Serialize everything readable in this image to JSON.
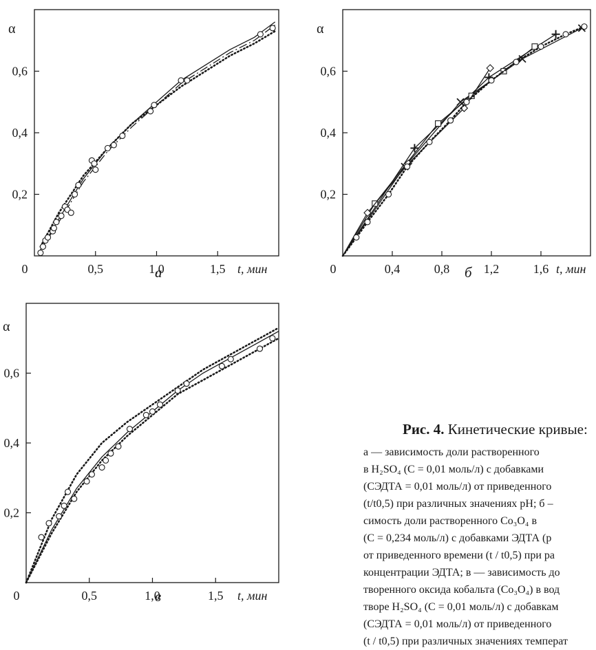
{
  "figure": {
    "caption_title_bold": "Рис. 4.",
    "caption_title_rest": " Кинетические кривые:",
    "caption_lines": [
      "а — зависимость доли растворенного",
      "в H₂SO₄ (C = 0,01 моль/л) с добавками",
      "(CЭДТА = 0,01 моль/л) от приведенного",
      "(t/t0,5) при различных значениях pH; б –",
      "симость доли растворенного Co₃O₄ в",
      "(C = 0,234 моль/л) с добавками ЭДТА (р",
      "от приведенного времени (t / t0,5) при ра",
      "концентрации ЭДТА; в — зависимость до",
      "творенного оксида кобальта (Co₃O₄) в вод",
      "творе H₂SO₄ (C = 0,01 моль/л) с добавкам",
      "(CЭДТА = 0,01 моль/л) от приведенного",
      "(t / t0,5) при различных значениях температ"
    ]
  },
  "chart_data": [
    {
      "type": "line",
      "panel_label": "а",
      "ylabel": "α",
      "xlabel": "t, мин",
      "xlim": [
        0,
        2.0
      ],
      "ylim": [
        0,
        0.8
      ],
      "x_ticks": [
        0.5,
        1.0,
        1.5
      ],
      "x_tick_labels": [
        "0,5",
        "1,0",
        "1,5"
      ],
      "y_ticks": [
        0.2,
        0.4,
        0.6
      ],
      "y_tick_labels": [
        "0,2",
        "0,4",
        "0,6"
      ],
      "origin_label": "0",
      "series": [
        {
          "style": "solid",
          "x": [
            0.05,
            0.2,
            0.4,
            0.6,
            0.8,
            1.0,
            1.2,
            1.4,
            1.6,
            1.8,
            1.97
          ],
          "y": [
            0.02,
            0.12,
            0.25,
            0.35,
            0.43,
            0.5,
            0.57,
            0.62,
            0.67,
            0.71,
            0.76
          ]
        },
        {
          "style": "dashdot",
          "x": [
            0.05,
            0.2,
            0.4,
            0.6,
            0.8,
            1.0,
            1.2,
            1.4,
            1.6,
            1.8,
            1.97
          ],
          "y": [
            0.02,
            0.11,
            0.24,
            0.34,
            0.42,
            0.49,
            0.56,
            0.61,
            0.66,
            0.7,
            0.75
          ]
        },
        {
          "style": "dotted",
          "x": [
            0.05,
            0.2,
            0.4,
            0.6,
            0.8,
            1.0,
            1.2,
            1.4,
            1.6,
            1.8,
            1.97
          ],
          "y": [
            0.03,
            0.14,
            0.26,
            0.35,
            0.43,
            0.49,
            0.55,
            0.6,
            0.65,
            0.69,
            0.73
          ]
        },
        {
          "style": "markers-o",
          "x": [
            0.05,
            0.07,
            0.09,
            0.11,
            0.15,
            0.16,
            0.18,
            0.22,
            0.25,
            0.27,
            0.3,
            0.33,
            0.36,
            0.47,
            0.49,
            0.5,
            0.6,
            0.65,
            0.72,
            0.95,
            0.98,
            1.2,
            1.25,
            1.85,
            1.95
          ],
          "y": [
            0.01,
            0.03,
            0.05,
            0.06,
            0.08,
            0.09,
            0.11,
            0.13,
            0.16,
            0.15,
            0.14,
            0.2,
            0.23,
            0.31,
            0.3,
            0.28,
            0.35,
            0.36,
            0.39,
            0.47,
            0.49,
            0.57,
            0.57,
            0.72,
            0.74
          ]
        }
      ]
    },
    {
      "type": "line",
      "panel_label": "б",
      "ylabel": "α",
      "xlabel": "t, мин",
      "xlim": [
        0,
        2.0
      ],
      "ylim": [
        0,
        0.8
      ],
      "x_ticks": [
        0.4,
        0.8,
        1.2,
        1.6
      ],
      "x_tick_labels": [
        "0,4",
        "0,8",
        "1,2",
        "1,6"
      ],
      "y_ticks": [
        0.2,
        0.4,
        0.6
      ],
      "y_tick_labels": [
        "0,2",
        "0,4",
        "0,6"
      ],
      "origin_label": "0",
      "series": [
        {
          "style": "solid",
          "marker": "x",
          "x": [
            0,
            0.5,
            0.95,
            1.45,
            1.93
          ],
          "y": [
            0,
            0.29,
            0.5,
            0.64,
            0.74
          ]
        },
        {
          "style": "solid",
          "marker": "+",
          "x": [
            0,
            0.58,
            1.18,
            1.72
          ],
          "y": [
            0,
            0.35,
            0.58,
            0.72
          ]
        },
        {
          "style": "solid",
          "marker": "square",
          "x": [
            0,
            0.26,
            0.77,
            1.04,
            1.3,
            1.55
          ],
          "y": [
            0,
            0.17,
            0.43,
            0.52,
            0.6,
            0.68
          ]
        },
        {
          "style": "solid",
          "marker": "diamond",
          "x": [
            0,
            0.2,
            0.53,
            0.98,
            1.19
          ],
          "y": [
            0,
            0.14,
            0.3,
            0.48,
            0.61
          ]
        },
        {
          "style": "dotted",
          "marker": "o",
          "x": [
            0,
            0.11,
            0.2,
            0.37,
            0.52,
            0.7,
            0.87,
            1.0,
            1.2,
            1.4,
            1.6,
            1.8,
            1.95
          ],
          "y": [
            0,
            0.06,
            0.11,
            0.2,
            0.29,
            0.37,
            0.44,
            0.5,
            0.57,
            0.63,
            0.68,
            0.72,
            0.745
          ]
        }
      ]
    },
    {
      "type": "line",
      "panel_label": "в",
      "ylabel": "α",
      "xlabel": "t, мин",
      "xlim": [
        0,
        2.0
      ],
      "ylim": [
        0,
        0.8
      ],
      "x_ticks": [
        0.5,
        1.0,
        1.5
      ],
      "x_tick_labels": [
        "0,5",
        "1,0",
        "1,5"
      ],
      "y_ticks": [
        0.2,
        0.4,
        0.6
      ],
      "y_tick_labels": [
        "0,2",
        "0,4",
        "0,6"
      ],
      "origin_label": "0",
      "series": [
        {
          "style": "solid",
          "x": [
            0,
            0.2,
            0.4,
            0.6,
            0.8,
            1.0,
            1.2,
            1.4,
            1.6,
            1.8,
            2.0
          ],
          "y": [
            0,
            0.15,
            0.27,
            0.36,
            0.43,
            0.49,
            0.55,
            0.6,
            0.64,
            0.68,
            0.72
          ]
        },
        {
          "style": "dotted",
          "x": [
            0,
            0.2,
            0.4,
            0.6,
            0.8,
            1.0,
            1.2,
            1.4,
            1.6,
            1.8,
            2.0
          ],
          "y": [
            0,
            0.14,
            0.26,
            0.35,
            0.42,
            0.48,
            0.54,
            0.58,
            0.62,
            0.66,
            0.7
          ]
        },
        {
          "style": "dotted",
          "x": [
            0,
            0.2,
            0.4,
            0.6,
            0.8,
            1.0,
            1.2,
            1.4,
            1.6,
            1.8,
            2.0
          ],
          "y": [
            0,
            0.18,
            0.31,
            0.4,
            0.46,
            0.51,
            0.56,
            0.61,
            0.65,
            0.69,
            0.73
          ]
        },
        {
          "style": "markers-o",
          "x": [
            0.12,
            0.18,
            0.26,
            0.3,
            0.33,
            0.38,
            0.48,
            0.52,
            0.6,
            0.63,
            0.67,
            0.73,
            0.82,
            0.95,
            1.0,
            1.06,
            1.2,
            1.27,
            1.55,
            1.62,
            1.85,
            1.95
          ],
          "y": [
            0.13,
            0.17,
            0.19,
            0.22,
            0.26,
            0.24,
            0.29,
            0.31,
            0.33,
            0.35,
            0.37,
            0.39,
            0.44,
            0.48,
            0.49,
            0.51,
            0.55,
            0.57,
            0.62,
            0.64,
            0.67,
            0.7
          ]
        }
      ]
    }
  ]
}
